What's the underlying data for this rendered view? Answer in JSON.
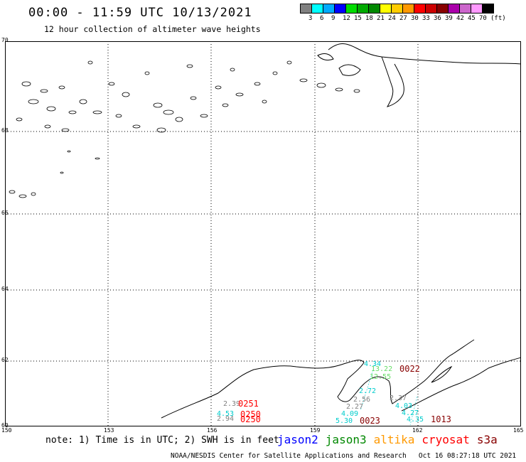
{
  "header": {
    "title": "00:00 - 11:59 UTC 10/13/2021",
    "subtitle": "12 hour collection of altimeter wave heights"
  },
  "legend": {
    "colors": [
      "#808080",
      "#00ffff",
      "#00aaff",
      "#0000ff",
      "#00dd00",
      "#00aa00",
      "#008800",
      "#ffff00",
      "#ffcc00",
      "#ff9900",
      "#ff0000",
      "#cc0000",
      "#880000",
      "#aa00aa",
      "#cc66cc",
      "#ff99ff",
      "#000000"
    ],
    "labels": [
      "3",
      "6",
      "9",
      "12",
      "15",
      "18",
      "21",
      "24",
      "27",
      "30",
      "33",
      "36",
      "39",
      "42",
      "45",
      "70",
      "(ft)"
    ]
  },
  "map": {
    "lat_labels": [
      "70",
      "68",
      "66",
      "64",
      "62",
      "60"
    ],
    "lon_labels": [
      "150",
      "153",
      "156",
      "159",
      "162",
      "165"
    ],
    "wave_values": [
      {
        "text": "4.34",
        "color": "#00cccc"
      },
      {
        "text": "13.22",
        "color": "#66dd66"
      },
      {
        "text": "12.55",
        "color": "#66dd66"
      },
      {
        "text": "2.72",
        "color": "#00cccc"
      },
      {
        "text": "2.39",
        "color": "#808080"
      },
      {
        "text": "2.56",
        "color": "#808080"
      },
      {
        "text": "2.37",
        "color": "#808080"
      },
      {
        "text": "2.27",
        "color": "#808080"
      },
      {
        "text": "4.03",
        "color": "#00cccc"
      },
      {
        "text": "4.09",
        "color": "#00cccc"
      },
      {
        "text": "4.27",
        "color": "#00cccc"
      },
      {
        "text": "4.53",
        "color": "#00cccc"
      },
      {
        "text": "2.94",
        "color": "#808080"
      },
      {
        "text": "5.30",
        "color": "#00cccc"
      },
      {
        "text": "4.35",
        "color": "#00cccc"
      }
    ],
    "track_labels": [
      {
        "text": "0022",
        "color": "#880000"
      },
      {
        "text": "0251",
        "color": "#ff0000"
      },
      {
        "text": "0250",
        "color": "#ff0000"
      },
      {
        "text": "0250",
        "color": "#ff0000"
      },
      {
        "text": "0023",
        "color": "#880000"
      },
      {
        "text": "1013",
        "color": "#880000"
      }
    ]
  },
  "footer": {
    "note": "note: 1) Time is in UTC; 2) SWH is in feet",
    "satellites": [
      {
        "name": "jason2",
        "color": "#0000ff"
      },
      {
        "name": "jason3",
        "color": "#008800"
      },
      {
        "name": "altika",
        "color": "#ff9900"
      },
      {
        "name": "cryosat",
        "color": "#ff0000"
      },
      {
        "name": "s3a",
        "color": "#880000"
      }
    ],
    "credit": "NOAA/NESDIS Center for Satellite Applications and Research   Oct 16 08:27:18 UTC 2021"
  }
}
